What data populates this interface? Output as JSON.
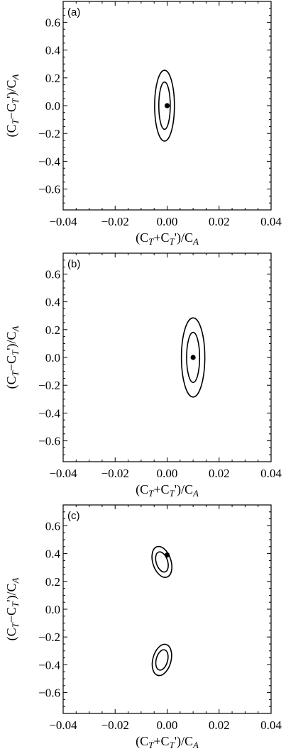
{
  "chart_data": [
    {
      "type": "scatter",
      "panel_label": "(a)",
      "xlabel": "(C_T+C_T')/C_A",
      "ylabel": "(C_T−C_T')/C_A",
      "xlim": [
        -0.04,
        0.04
      ],
      "ylim": [
        -0.75,
        0.75
      ],
      "xticks": [
        "−0.04",
        "−0.02",
        "0.00",
        "0.02",
        "0.04"
      ],
      "yticks": [
        "0.6",
        "0.4",
        "0.2",
        "0.0",
        "−0.2",
        "−0.4",
        "−0.6"
      ],
      "grid": false,
      "points": [
        {
          "x": 0.0,
          "y": 0.0
        }
      ],
      "contours": [
        {
          "cx": -0.001,
          "cy": 0.0,
          "rx": 0.0022,
          "ry": 0.17,
          "tilt": 0
        },
        {
          "cx": -0.001,
          "cy": 0.0,
          "rx": 0.0038,
          "ry": 0.255,
          "tilt": 0
        }
      ]
    },
    {
      "type": "scatter",
      "panel_label": "(b)",
      "xlabel": "(C_T+C_T')/C_A",
      "ylabel": "(C_T−C_T')/C_A",
      "xlim": [
        -0.04,
        0.04
      ],
      "ylim": [
        -0.75,
        0.75
      ],
      "xticks": [
        "−0.04",
        "−0.02",
        "0.00",
        "0.02",
        "0.04"
      ],
      "yticks": [
        "0.6",
        "0.4",
        "0.2",
        "0.0",
        "−0.2",
        "−0.4",
        "−0.6"
      ],
      "grid": false,
      "points": [
        {
          "x": 0.01,
          "y": 0.0
        }
      ],
      "contours": [
        {
          "cx": 0.01,
          "cy": 0.0,
          "rx": 0.0025,
          "ry": 0.18,
          "tilt": 0
        },
        {
          "cx": 0.01,
          "cy": 0.0,
          "rx": 0.0045,
          "ry": 0.285,
          "tilt": 0
        }
      ]
    },
    {
      "type": "scatter",
      "panel_label": "(c)",
      "xlabel": "(C_T+C_T')/C_A",
      "ylabel": "(C_T−C_T')/C_A",
      "xlim": [
        -0.04,
        0.04
      ],
      "ylim": [
        -0.75,
        0.75
      ],
      "xticks": [
        "−0.04",
        "−0.02",
        "0.00",
        "0.02",
        "0.04"
      ],
      "yticks": [
        "0.6",
        "0.4",
        "0.2",
        "0.0",
        "−0.2",
        "−0.4",
        "−0.6"
      ],
      "grid": false,
      "points": [
        {
          "x": 0.0,
          "y": 0.39
        }
      ],
      "contours": [
        {
          "cx": -0.002,
          "cy": 0.34,
          "rx": 0.0022,
          "ry": 0.075,
          "tilt": -18
        },
        {
          "cx": -0.002,
          "cy": 0.34,
          "rx": 0.0035,
          "ry": 0.115,
          "tilt": -18
        },
        {
          "cx": -0.002,
          "cy": -0.365,
          "rx": 0.0022,
          "ry": 0.075,
          "tilt": 15
        },
        {
          "cx": -0.002,
          "cy": -0.365,
          "rx": 0.0035,
          "ry": 0.115,
          "tilt": 15
        }
      ]
    }
  ]
}
